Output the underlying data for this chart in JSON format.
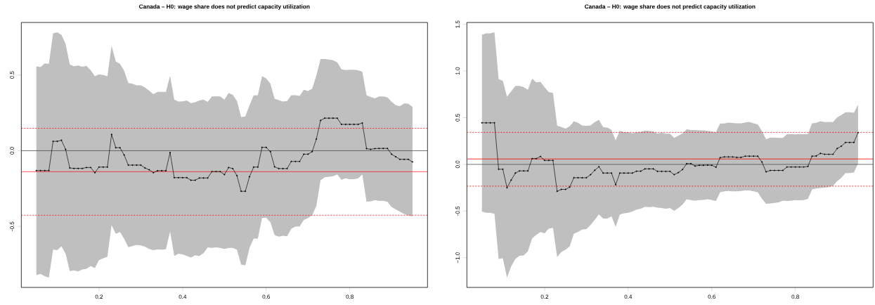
{
  "chart_data": [
    {
      "type": "line",
      "title": "Canada – H0: wage share does not predict capacity utilization",
      "marker": "circle",
      "line_style": "solid",
      "x": [
        0.05,
        0.06,
        0.07,
        0.08,
        0.09,
        0.1,
        0.11,
        0.12,
        0.13,
        0.14,
        0.15,
        0.16,
        0.17,
        0.18,
        0.19,
        0.2,
        0.21,
        0.22,
        0.23,
        0.24,
        0.25,
        0.26,
        0.27,
        0.28,
        0.29,
        0.3,
        0.31,
        0.32,
        0.33,
        0.34,
        0.35,
        0.36,
        0.37,
        0.38,
        0.39,
        0.4,
        0.41,
        0.42,
        0.43,
        0.44,
        0.45,
        0.46,
        0.47,
        0.48,
        0.49,
        0.5,
        0.51,
        0.52,
        0.53,
        0.54,
        0.55,
        0.56,
        0.57,
        0.58,
        0.59,
        0.6,
        0.61,
        0.62,
        0.63,
        0.64,
        0.65,
        0.66,
        0.67,
        0.68,
        0.69,
        0.7,
        0.71,
        0.72,
        0.73,
        0.74,
        0.75,
        0.76,
        0.77,
        0.78,
        0.79,
        0.8,
        0.81,
        0.82,
        0.83,
        0.84,
        0.85,
        0.86,
        0.87,
        0.88,
        0.89,
        0.9,
        0.91,
        0.92,
        0.93,
        0.94,
        0.95
      ],
      "series": [
        {
          "color": "#000000",
          "values": [
            -0.131,
            -0.131,
            -0.131,
            -0.131,
            0.062,
            0.062,
            0.069,
            0.009,
            -0.114,
            -0.117,
            -0.117,
            -0.117,
            -0.111,
            -0.111,
            -0.145,
            -0.108,
            -0.108,
            -0.108,
            0.108,
            0.02,
            0.02,
            -0.028,
            -0.095,
            -0.095,
            -0.095,
            -0.095,
            -0.114,
            -0.126,
            -0.145,
            -0.132,
            -0.132,
            -0.132,
            -0.012,
            -0.178,
            -0.178,
            -0.178,
            -0.178,
            -0.195,
            -0.195,
            -0.18,
            -0.18,
            -0.18,
            -0.138,
            -0.138,
            -0.138,
            -0.158,
            -0.111,
            -0.118,
            -0.165,
            -0.268,
            -0.268,
            -0.172,
            -0.108,
            -0.108,
            0.022,
            0.022,
            -0.006,
            -0.106,
            -0.118,
            -0.118,
            -0.118,
            -0.071,
            -0.071,
            -0.071,
            -0.023,
            -0.023,
            -0.006,
            0.077,
            0.2,
            0.215,
            0.215,
            0.215,
            0.215,
            0.174,
            0.174,
            0.174,
            0.174,
            0.174,
            0.183,
            0.014,
            0.009,
            0.014,
            0.015,
            0.015,
            0.015,
            -0.023,
            -0.04,
            -0.057,
            -0.057,
            -0.057,
            -0.074
          ],
          "upper": [
            0.558,
            0.552,
            0.577,
            0.574,
            0.775,
            0.782,
            0.766,
            0.705,
            0.569,
            0.558,
            0.563,
            0.554,
            0.56,
            0.531,
            0.492,
            0.505,
            0.5,
            0.492,
            0.694,
            0.589,
            0.574,
            0.528,
            0.448,
            0.442,
            0.432,
            0.432,
            0.417,
            0.397,
            0.374,
            0.389,
            0.389,
            0.388,
            0.494,
            0.338,
            0.325,
            0.326,
            0.332,
            0.314,
            0.32,
            0.332,
            0.337,
            0.322,
            0.358,
            0.36,
            0.358,
            0.338,
            0.382,
            0.369,
            0.328,
            0.223,
            0.226,
            0.3,
            0.365,
            0.366,
            0.492,
            0.478,
            0.443,
            0.343,
            0.334,
            0.325,
            0.328,
            0.366,
            0.366,
            0.362,
            0.402,
            0.394,
            0.409,
            0.497,
            0.605,
            0.605,
            0.602,
            0.597,
            0.583,
            0.538,
            0.532,
            0.535,
            0.535,
            0.531,
            0.522,
            0.366,
            0.355,
            0.346,
            0.358,
            0.358,
            0.352,
            0.323,
            0.3,
            0.294,
            0.312,
            0.311,
            0.289
          ],
          "lower": [
            -0.822,
            -0.814,
            -0.829,
            -0.838,
            -0.654,
            -0.657,
            -0.631,
            -0.68,
            -0.795,
            -0.791,
            -0.798,
            -0.785,
            -0.78,
            -0.762,
            -0.775,
            -0.722,
            -0.711,
            -0.7,
            -0.491,
            -0.549,
            -0.538,
            -0.58,
            -0.637,
            -0.629,
            -0.622,
            -0.626,
            -0.634,
            -0.649,
            -0.657,
            -0.652,
            -0.654,
            -0.651,
            -0.534,
            -0.695,
            -0.68,
            -0.685,
            -0.695,
            -0.706,
            -0.691,
            -0.695,
            -0.677,
            -0.638,
            -0.642,
            -0.638,
            -0.642,
            -0.649,
            -0.642,
            -0.642,
            -0.654,
            -0.752,
            -0.757,
            -0.642,
            -0.58,
            -0.58,
            -0.445,
            -0.442,
            -0.472,
            -0.557,
            -0.568,
            -0.562,
            -0.565,
            -0.515,
            -0.5,
            -0.5,
            -0.457,
            -0.445,
            -0.426,
            -0.365,
            -0.195,
            -0.175,
            -0.172,
            -0.168,
            -0.157,
            -0.192,
            -0.183,
            -0.188,
            -0.188,
            -0.183,
            -0.157,
            -0.337,
            -0.334,
            -0.326,
            -0.331,
            -0.331,
            -0.337,
            -0.372,
            -0.388,
            -0.403,
            -0.418,
            -0.429,
            -0.434
          ]
        }
      ],
      "ref_lines": [
        {
          "axis": "y",
          "value": 0,
          "color": "#4d4d4d",
          "line_style": "solid"
        },
        {
          "axis": "y",
          "value": -0.138,
          "color": "#ff0000",
          "line_style": "solid"
        },
        {
          "axis": "y",
          "value": 0.148,
          "color": "#ff0000",
          "line_style": "dashed"
        },
        {
          "axis": "y",
          "value": -0.426,
          "color": "#ff0000",
          "line_style": "dashed"
        }
      ],
      "xlim": [
        0.014,
        0.986
      ],
      "ylim": [
        -0.903,
        0.847
      ],
      "xticks": [
        0.2,
        0.4,
        0.6,
        0.8
      ],
      "yticks": [
        -0.5,
        {
          "value": 0,
          "label": "0.0"
        },
        0.5
      ]
    },
    {
      "type": "line",
      "title": "Canada – H0: wage share does not predict capacity utilization",
      "marker": "circle",
      "line_style": "solid",
      "x": [
        0.05,
        0.06,
        0.07,
        0.08,
        0.09,
        0.1,
        0.11,
        0.12,
        0.13,
        0.14,
        0.15,
        0.16,
        0.17,
        0.18,
        0.19,
        0.2,
        0.21,
        0.22,
        0.23,
        0.24,
        0.25,
        0.26,
        0.27,
        0.28,
        0.29,
        0.3,
        0.31,
        0.32,
        0.33,
        0.34,
        0.35,
        0.36,
        0.37,
        0.38,
        0.39,
        0.4,
        0.41,
        0.42,
        0.43,
        0.44,
        0.45,
        0.46,
        0.47,
        0.48,
        0.49,
        0.5,
        0.51,
        0.52,
        0.53,
        0.54,
        0.55,
        0.56,
        0.57,
        0.58,
        0.59,
        0.6,
        0.61,
        0.62,
        0.63,
        0.64,
        0.65,
        0.66,
        0.67,
        0.68,
        0.69,
        0.7,
        0.71,
        0.72,
        0.73,
        0.74,
        0.75,
        0.76,
        0.77,
        0.78,
        0.79,
        0.8,
        0.81,
        0.82,
        0.83,
        0.84,
        0.85,
        0.86,
        0.87,
        0.88,
        0.89,
        0.9,
        0.91,
        0.92,
        0.93,
        0.94,
        0.95
      ],
      "series": [
        {
          "color": "#000000",
          "values": [
            0.445,
            0.445,
            0.445,
            0.445,
            -0.052,
            -0.052,
            -0.25,
            -0.168,
            -0.093,
            -0.07,
            -0.07,
            -0.07,
            0.062,
            0.062,
            0.085,
            0.042,
            0.042,
            0.042,
            -0.288,
            -0.268,
            -0.268,
            -0.243,
            -0.143,
            -0.143,
            -0.143,
            -0.143,
            -0.11,
            -0.063,
            -0.025,
            -0.093,
            -0.093,
            -0.093,
            -0.218,
            -0.093,
            -0.093,
            -0.093,
            -0.093,
            -0.073,
            -0.073,
            -0.048,
            -0.048,
            -0.048,
            -0.075,
            -0.075,
            -0.075,
            -0.075,
            -0.11,
            -0.088,
            -0.055,
            0.008,
            0.008,
            -0.018,
            -0.01,
            -0.01,
            -0.008,
            -0.01,
            -0.03,
            0.072,
            0.08,
            0.08,
            0.08,
            0.075,
            0.075,
            0.088,
            0.088,
            0.088,
            0.088,
            0.025,
            -0.08,
            -0.065,
            -0.065,
            -0.065,
            -0.065,
            -0.028,
            -0.028,
            -0.028,
            -0.028,
            -0.028,
            -0.022,
            0.088,
            0.09,
            0.118,
            0.108,
            0.108,
            0.108,
            0.17,
            0.195,
            0.235,
            0.235,
            0.235,
            0.34
          ],
          "upper": [
            1.388,
            1.403,
            1.403,
            1.415,
            0.913,
            0.895,
            0.725,
            0.783,
            0.84,
            0.84,
            0.828,
            0.8,
            0.918,
            0.878,
            0.883,
            0.825,
            0.775,
            0.765,
            0.415,
            0.4,
            0.383,
            0.408,
            0.463,
            0.445,
            0.415,
            0.413,
            0.418,
            0.453,
            0.478,
            0.398,
            0.395,
            0.37,
            0.258,
            0.358,
            0.345,
            0.345,
            0.333,
            0.345,
            0.35,
            0.36,
            0.358,
            0.353,
            0.328,
            0.34,
            0.328,
            0.328,
            0.283,
            0.308,
            0.333,
            0.375,
            0.368,
            0.368,
            0.365,
            0.365,
            0.358,
            0.353,
            0.345,
            0.438,
            0.438,
            0.448,
            0.443,
            0.44,
            0.44,
            0.45,
            0.455,
            0.44,
            0.428,
            0.358,
            0.268,
            0.288,
            0.288,
            0.283,
            0.283,
            0.323,
            0.325,
            0.322,
            0.324,
            0.323,
            0.325,
            0.44,
            0.445,
            0.463,
            0.453,
            0.455,
            0.452,
            0.503,
            0.528,
            0.558,
            0.558,
            0.553,
            0.64
          ],
          "lower": [
            -0.505,
            -0.518,
            -0.518,
            -0.53,
            -1.013,
            -1.005,
            -1.213,
            -1.093,
            -1.013,
            -0.98,
            -0.975,
            -0.93,
            -0.793,
            -0.755,
            -0.725,
            -0.738,
            -0.688,
            -0.68,
            -0.993,
            -0.938,
            -0.913,
            -0.88,
            -0.743,
            -0.723,
            -0.698,
            -0.693,
            -0.648,
            -0.593,
            -0.535,
            -0.58,
            -0.58,
            -0.555,
            -0.668,
            -0.538,
            -0.523,
            -0.518,
            -0.505,
            -0.485,
            -0.475,
            -0.455,
            -0.458,
            -0.455,
            -0.463,
            -0.468,
            -0.475,
            -0.468,
            -0.498,
            -0.468,
            -0.43,
            -0.373,
            -0.383,
            -0.388,
            -0.383,
            -0.38,
            -0.373,
            -0.38,
            -0.393,
            -0.298,
            -0.288,
            -0.285,
            -0.288,
            -0.288,
            -0.285,
            -0.28,
            -0.28,
            -0.288,
            -0.298,
            -0.368,
            -0.423,
            -0.418,
            -0.413,
            -0.408,
            -0.388,
            -0.393,
            -0.388,
            -0.383,
            -0.385,
            -0.383,
            -0.37,
            -0.268,
            -0.258,
            -0.253,
            -0.25,
            -0.243,
            -0.23,
            -0.18,
            -0.143,
            -0.093,
            -0.093,
            -0.088,
            0.008
          ]
        }
      ],
      "ref_lines": [
        {
          "axis": "y",
          "value": 0,
          "color": "#4d4d4d",
          "line_style": "solid"
        },
        {
          "axis": "y",
          "value": 0.058,
          "color": "#ff0000",
          "line_style": "solid"
        },
        {
          "axis": "y",
          "value": 0.343,
          "color": "#ff0000",
          "line_style": "dashed"
        },
        {
          "axis": "y",
          "value": -0.233,
          "color": "#ff0000",
          "line_style": "dashed"
        }
      ],
      "xlim": [
        0.014,
        0.986
      ],
      "ylim": [
        -1.318,
        1.52
      ],
      "xticks": [
        0.2,
        0.4,
        0.6,
        0.8
      ],
      "yticks": [
        {
          "value": -1,
          "label": "−1.0"
        },
        -0.5,
        {
          "value": 0,
          "label": "0.0"
        },
        0.5,
        {
          "value": 1,
          "label": "1.0"
        },
        1.5
      ]
    }
  ]
}
